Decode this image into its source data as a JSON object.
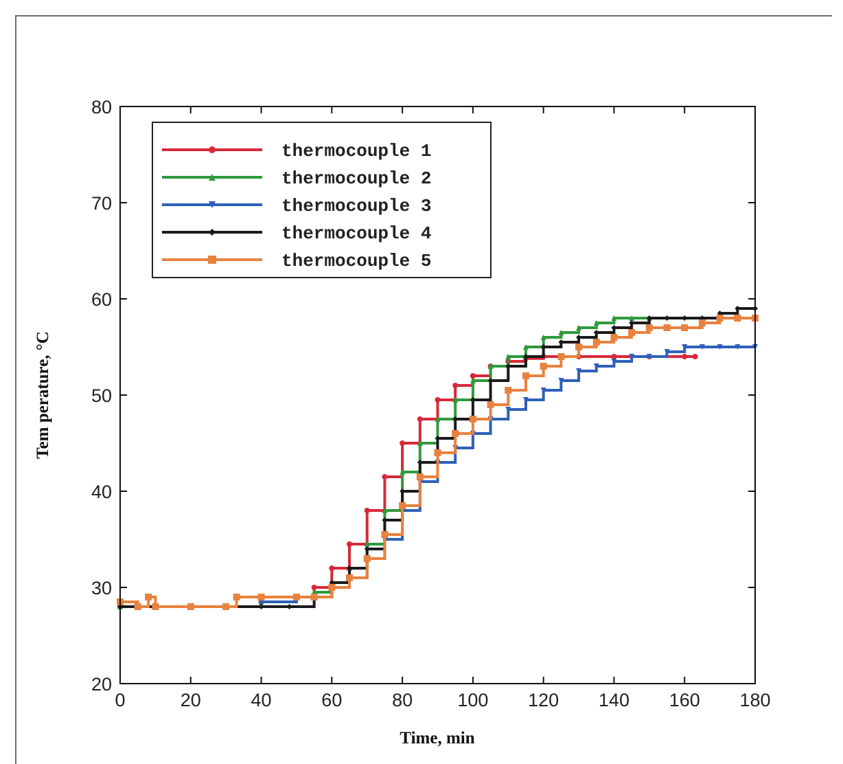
{
  "chart_data": {
    "type": "line",
    "xlabel": "Time, min",
    "ylabel": "Tem perature, °C",
    "xlim": [
      0,
      180
    ],
    "ylim": [
      20,
      80
    ],
    "xticks": [
      0,
      20,
      40,
      60,
      80,
      100,
      120,
      140,
      160,
      180
    ],
    "yticks": [
      20,
      30,
      40,
      50,
      60,
      70,
      80
    ],
    "x_tick_labels": [
      "0",
      "20",
      "40",
      "60",
      "80",
      "100",
      "120",
      "140",
      "160",
      "180"
    ],
    "y_tick_labels": [
      "20",
      "30",
      "40",
      "50",
      "60",
      "70",
      "80"
    ],
    "grid": false,
    "legend_position": "top-left",
    "series": [
      {
        "name": "thermocouple 1",
        "color": "#d8283a",
        "marker": "circle",
        "x": [
          0,
          10,
          20,
          30,
          40,
          50,
          55,
          60,
          65,
          70,
          75,
          80,
          85,
          90,
          95,
          100,
          105,
          110,
          115,
          120,
          130,
          140,
          150,
          160,
          163
        ],
        "y": [
          28,
          28,
          28,
          28,
          28.5,
          29,
          30,
          32,
          34.5,
          38,
          41.5,
          45,
          47.5,
          49.5,
          51,
          52,
          53,
          53.5,
          53.8,
          54,
          54,
          54,
          54,
          54,
          54
        ]
      },
      {
        "name": "thermocouple 2",
        "color": "#2f9a3c",
        "marker": "triangle",
        "x": [
          0,
          10,
          20,
          30,
          40,
          50,
          55,
          60,
          65,
          70,
          75,
          80,
          85,
          90,
          95,
          100,
          105,
          110,
          115,
          120,
          125,
          130,
          135,
          140,
          145,
          150
        ],
        "y": [
          28,
          28,
          28,
          28,
          28.5,
          29,
          29.5,
          30.5,
          32,
          34.5,
          38,
          42,
          45,
          47.5,
          49.5,
          51.5,
          53,
          54,
          55,
          56,
          56.5,
          57,
          57.5,
          58,
          58,
          58
        ]
      },
      {
        "name": "thermocouple 3",
        "color": "#2f5fb8",
        "marker": "triangle-down",
        "x": [
          0,
          10,
          20,
          30,
          40,
          50,
          55,
          60,
          65,
          70,
          75,
          80,
          85,
          90,
          95,
          100,
          105,
          110,
          115,
          120,
          125,
          130,
          135,
          140,
          145,
          150,
          155,
          160,
          165,
          170,
          175,
          180
        ],
        "y": [
          28,
          28,
          28,
          28,
          28.5,
          29,
          29,
          30,
          31,
          33,
          35,
          38,
          41,
          43,
          44.5,
          46,
          47.5,
          48.5,
          49.5,
          50.5,
          51.5,
          52.5,
          53,
          53.5,
          54,
          54,
          54.5,
          55,
          55,
          55,
          55,
          55
        ]
      },
      {
        "name": "thermocouple 4",
        "color": "#1a1a1a",
        "marker": "diamond",
        "x": [
          0,
          10,
          20,
          30,
          40,
          48,
          55,
          60,
          65,
          70,
          75,
          80,
          85,
          90,
          95,
          100,
          105,
          110,
          115,
          120,
          125,
          130,
          135,
          140,
          145,
          150,
          155,
          160,
          165,
          170,
          175,
          180
        ],
        "y": [
          28,
          28,
          28,
          28,
          28,
          28,
          29,
          30.5,
          32,
          34,
          37,
          40,
          43,
          45.5,
          47.5,
          49.5,
          51.5,
          53,
          54,
          55,
          55.5,
          56,
          56.5,
          57,
          57.5,
          58,
          58,
          58,
          58,
          58.5,
          59,
          59
        ]
      },
      {
        "name": "thermocouple 5",
        "color": "#e8823f",
        "marker": "square",
        "x": [
          0,
          5,
          8,
          10,
          20,
          30,
          33,
          40,
          50,
          55,
          60,
          65,
          70,
          75,
          80,
          85,
          90,
          95,
          100,
          105,
          110,
          115,
          120,
          125,
          130,
          135,
          140,
          145,
          150,
          155,
          160,
          165,
          170,
          175,
          180
        ],
        "y": [
          28.5,
          28,
          29,
          28,
          28,
          28,
          29,
          29,
          29,
          29,
          30,
          31,
          33,
          35.5,
          38.5,
          41.5,
          44,
          46,
          47.5,
          49,
          50.5,
          52,
          53,
          54,
          55,
          55.5,
          56,
          56.5,
          57,
          57,
          57,
          57.5,
          58,
          58,
          58
        ]
      }
    ]
  }
}
